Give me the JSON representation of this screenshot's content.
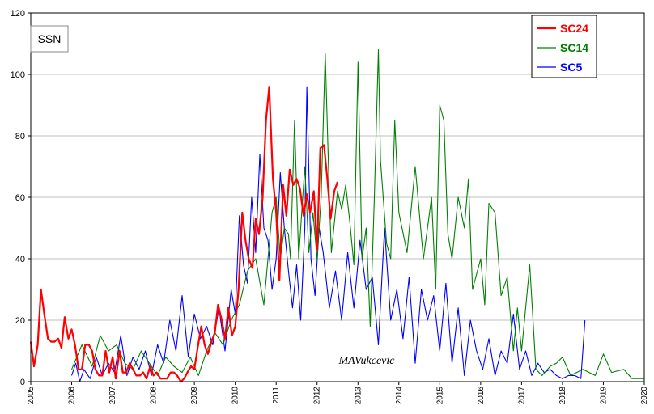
{
  "chart_data": {
    "type": "line",
    "title": "",
    "xlabel": "",
    "ylabel": "",
    "badge": "SSN",
    "watermark": "MAVukcevic",
    "xlim": [
      2005,
      2020
    ],
    "ylim": [
      0,
      120
    ],
    "x_ticks": [
      "2005",
      "2006",
      "2007",
      "2008",
      "2009",
      "2010",
      "2011",
      "2012",
      "2013",
      "2014",
      "2015",
      "2016",
      "2017",
      "2018",
      "2019",
      "2020"
    ],
    "y_ticks": [
      "0",
      "20",
      "40",
      "60",
      "80",
      "100",
      "120"
    ],
    "grid": true,
    "legend_position": "top-right",
    "series": [
      {
        "name": "SC24",
        "color": "#ff0000",
        "x": [
          2005.0,
          2005.08,
          2005.17,
          2005.25,
          2005.33,
          2005.42,
          2005.5,
          2005.58,
          2005.67,
          2005.75,
          2005.83,
          2005.92,
          2006.0,
          2006.08,
          2006.17,
          2006.25,
          2006.33,
          2006.42,
          2006.5,
          2006.58,
          2006.67,
          2006.75,
          2006.83,
          2006.92,
          2007.0,
          2007.08,
          2007.17,
          2007.25,
          2007.33,
          2007.42,
          2007.5,
          2007.58,
          2007.67,
          2007.75,
          2007.83,
          2007.92,
          2008.0,
          2008.08,
          2008.17,
          2008.25,
          2008.33,
          2008.42,
          2008.5,
          2008.58,
          2008.67,
          2008.75,
          2008.83,
          2008.92,
          2009.0,
          2009.08,
          2009.17,
          2009.25,
          2009.33,
          2009.42,
          2009.5,
          2009.58,
          2009.67,
          2009.75,
          2009.83,
          2009.92,
          2010.0,
          2010.08,
          2010.17,
          2010.25,
          2010.33,
          2010.42,
          2010.5,
          2010.58,
          2010.67,
          2010.75,
          2010.83,
          2010.92,
          2011.0,
          2011.08,
          2011.17,
          2011.25,
          2011.33,
          2011.42,
          2011.5,
          2011.58,
          2011.67,
          2011.75,
          2011.83,
          2011.92,
          2012.0,
          2012.08,
          2012.17,
          2012.25,
          2012.33,
          2012.42,
          2012.5
        ],
        "values": [
          13,
          5,
          12,
          30,
          22,
          14,
          13,
          13,
          14,
          11,
          21,
          14,
          17,
          12,
          4,
          4,
          12,
          12,
          10,
          4,
          2,
          2,
          10,
          3,
          8,
          1,
          10,
          3,
          3,
          6,
          4,
          2,
          2,
          3,
          1,
          5,
          2,
          3,
          1,
          1,
          1,
          3,
          3,
          2,
          0,
          1,
          3,
          5,
          4,
          11,
          18,
          12,
          9,
          13,
          16,
          25,
          20,
          14,
          24,
          15,
          18,
          30,
          55,
          46,
          40,
          37,
          53,
          48,
          60,
          85,
          96,
          66,
          55,
          33,
          64,
          54,
          69,
          64,
          66,
          63,
          54,
          61,
          55,
          62,
          43,
          76,
          77,
          66,
          53,
          62,
          65
        ]
      },
      {
        "name": "SC14",
        "color": "#008000",
        "x": [
          2006.0,
          2006.25,
          2006.5,
          2006.7,
          2006.9,
          2007.1,
          2007.3,
          2007.5,
          2007.7,
          2007.9,
          2008.1,
          2008.3,
          2008.5,
          2008.7,
          2008.9,
          2009.1,
          2009.3,
          2009.5,
          2009.7,
          2009.9,
          2010.1,
          2010.3,
          2010.5,
          2010.7,
          2010.9,
          2011.0,
          2011.1,
          2011.2,
          2011.3,
          2011.35,
          2011.45,
          2011.55,
          2011.65,
          2011.7,
          2011.8,
          2011.9,
          2012.0,
          2012.1,
          2012.2,
          2012.3,
          2012.35,
          2012.5,
          2012.6,
          2012.7,
          2012.8,
          2012.9,
          2013.0,
          2013.1,
          2013.2,
          2013.3,
          2013.4,
          2013.5,
          2013.55,
          2013.7,
          2013.8,
          2013.9,
          2014.0,
          2014.2,
          2014.4,
          2014.6,
          2014.8,
          2014.9,
          2015.0,
          2015.1,
          2015.2,
          2015.3,
          2015.45,
          2015.6,
          2015.7,
          2015.8,
          2015.9,
          2016.0,
          2016.1,
          2016.2,
          2016.35,
          2016.5,
          2016.65,
          2016.8,
          2016.9,
          2017.0,
          2017.2,
          2017.35,
          2017.5,
          2017.7,
          2017.85,
          2018.0,
          2018.2,
          2018.5,
          2018.8,
          2019.0,
          2019.2,
          2019.5,
          2019.7,
          2020.0
        ],
        "values": [
          4,
          12,
          5,
          15,
          10,
          12,
          6,
          4,
          10,
          6,
          2,
          8,
          5,
          3,
          8,
          2,
          10,
          16,
          12,
          20,
          25,
          36,
          40,
          25,
          55,
          60,
          40,
          50,
          48,
          40,
          85,
          40,
          60,
          70,
          42,
          55,
          40,
          60,
          107,
          60,
          42,
          62,
          56,
          64,
          52,
          38,
          104,
          40,
          50,
          18,
          60,
          108,
          72,
          45,
          40,
          85,
          55,
          42,
          70,
          40,
          60,
          30,
          90,
          85,
          48,
          40,
          60,
          50,
          66,
          30,
          35,
          40,
          25,
          58,
          55,
          28,
          34,
          10,
          24,
          10,
          38,
          4,
          2,
          5,
          6,
          8,
          2,
          4,
          2,
          9,
          3,
          4,
          1,
          1
        ]
      },
      {
        "name": "SC5",
        "color": "#0000ff",
        "x": [
          2006.0,
          2006.1,
          2006.2,
          2006.3,
          2006.45,
          2006.6,
          2006.75,
          2006.9,
          2007.05,
          2007.2,
          2007.35,
          2007.5,
          2007.65,
          2007.8,
          2007.95,
          2008.1,
          2008.25,
          2008.4,
          2008.55,
          2008.7,
          2008.85,
          2009.0,
          2009.15,
          2009.3,
          2009.45,
          2009.6,
          2009.75,
          2009.9,
          2010.0,
          2010.1,
          2010.2,
          2010.3,
          2010.4,
          2010.5,
          2010.6,
          2010.7,
          2010.8,
          2010.9,
          2011.0,
          2011.1,
          2011.2,
          2011.3,
          2011.4,
          2011.5,
          2011.6,
          2011.7,
          2011.75,
          2011.85,
          2011.95,
          2012.05,
          2012.15,
          2012.3,
          2012.45,
          2012.6,
          2012.75,
          2012.9,
          2013.05,
          2013.2,
          2013.35,
          2013.5,
          2013.65,
          2013.8,
          2013.95,
          2014.1,
          2014.25,
          2014.4,
          2014.55,
          2014.7,
          2014.85,
          2015.0,
          2015.15,
          2015.3,
          2015.45,
          2015.6,
          2015.75,
          2015.9,
          2016.05,
          2016.2,
          2016.35,
          2016.5,
          2016.65,
          2016.8,
          2016.95,
          2017.1,
          2017.25,
          2017.4,
          2017.55,
          2017.7,
          2017.85,
          2018.0,
          2018.15,
          2018.3,
          2018.45,
          2018.55
        ],
        "values": [
          2,
          6,
          0,
          4,
          1,
          8,
          2,
          6,
          3,
          15,
          2,
          8,
          4,
          10,
          2,
          12,
          6,
          20,
          10,
          28,
          8,
          22,
          14,
          18,
          12,
          24,
          10,
          30,
          22,
          54,
          38,
          32,
          60,
          42,
          74,
          50,
          46,
          30,
          40,
          68,
          50,
          36,
          24,
          38,
          20,
          50,
          96,
          40,
          28,
          50,
          42,
          24,
          36,
          20,
          42,
          24,
          46,
          30,
          34,
          12,
          50,
          20,
          30,
          14,
          34,
          6,
          30,
          20,
          28,
          10,
          32,
          6,
          24,
          2,
          20,
          10,
          4,
          14,
          2,
          10,
          6,
          22,
          4,
          10,
          2,
          6,
          3,
          4,
          2,
          1,
          2,
          2,
          1,
          20
        ]
      }
    ]
  }
}
